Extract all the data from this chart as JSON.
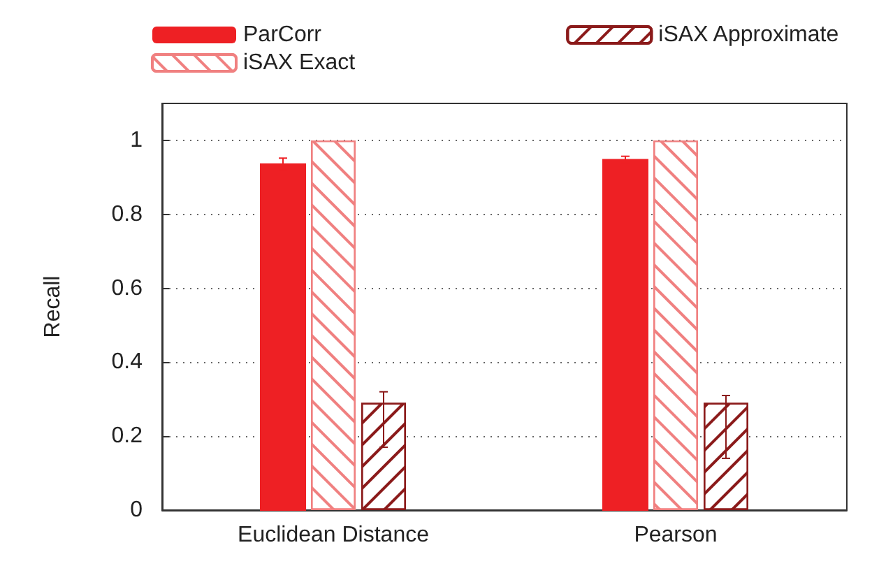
{
  "chart_data": {
    "type": "bar",
    "ylabel": "Recall",
    "categories": [
      "Euclidean Distance",
      "Pearson"
    ],
    "series": [
      {
        "name": "ParCorr",
        "color": "#ee2024",
        "values": [
          0.936,
          0.948
        ],
        "errors": [
          0.016,
          0.009
        ]
      },
      {
        "name": "iSAX Exact",
        "color": "#f08080",
        "values": [
          1,
          1
        ]
      },
      {
        "name": "iSAX Approximate",
        "color": "#8b1a1a",
        "values": [
          0.29,
          0.29
        ],
        "errors": [
          [
            0.17,
            0.32
          ],
          [
            0.14,
            0.31
          ]
        ]
      }
    ],
    "ylim": [
      0,
      1.1
    ],
    "yticks": [
      0,
      0.2,
      0.4,
      0.6,
      0.8,
      1
    ],
    "grid": "y",
    "legend": "top"
  }
}
